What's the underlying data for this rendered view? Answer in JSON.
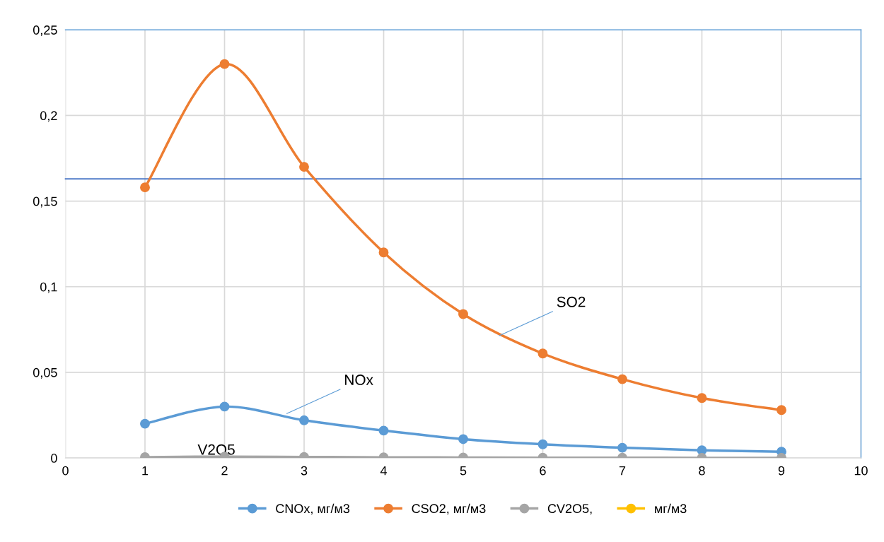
{
  "chart_data": {
    "type": "line",
    "x": [
      1,
      2,
      3,
      4,
      5,
      6,
      7,
      8,
      9
    ],
    "series": [
      {
        "name": "CNOx, мг/м3",
        "color": "#5b9bd5",
        "values": [
          0.02,
          0.03,
          0.022,
          0.016,
          0.011,
          0.008,
          0.006,
          0.0045,
          0.0037
        ]
      },
      {
        "name": "CSO2, мг/м3",
        "color": "#ed7d31",
        "values": [
          0.158,
          0.23,
          0.17,
          0.12,
          0.084,
          0.061,
          0.046,
          0.035,
          0.028
        ]
      },
      {
        "name": "CV2O5,",
        "color": "#a5a5a5",
        "values": [
          0.0005,
          0.0008,
          0.0006,
          0.0004,
          0.0003,
          0.0002,
          0.0002,
          0.0001,
          0.0001
        ]
      },
      {
        "name": "мг/м3",
        "color": "#ffc000",
        "values": [
          null,
          null,
          null,
          null,
          null,
          null,
          null,
          null,
          null
        ]
      }
    ],
    "xlim": [
      0,
      10
    ],
    "xticks": [
      0,
      1,
      2,
      3,
      4,
      5,
      6,
      7,
      8,
      9,
      10
    ],
    "ylim": [
      0,
      0.25
    ],
    "yticks": [
      0,
      {
        "value": 0.05,
        "label": "0,05"
      },
      {
        "value": 0.1,
        "label": "0,1"
      },
      {
        "value": 0.15,
        "label": "0,15"
      },
      {
        "value": 0.2,
        "label": "0,2"
      },
      {
        "value": 0.25,
        "label": "0,25"
      }
    ],
    "ref_lines": [
      {
        "axis": "y",
        "value": 0.163,
        "color": "#4472c4"
      }
    ],
    "annotations": [
      {
        "text": "SO2",
        "x": 5.43,
        "y": 0.071
      },
      {
        "text": "NOx",
        "x": 2.76,
        "y": 0.0255
      },
      {
        "text": "V2O5",
        "x": 1.6,
        "y": 0.0008
      }
    ],
    "grid": true,
    "legend": "bottom",
    "marker": "circle",
    "line_style": "solid"
  }
}
